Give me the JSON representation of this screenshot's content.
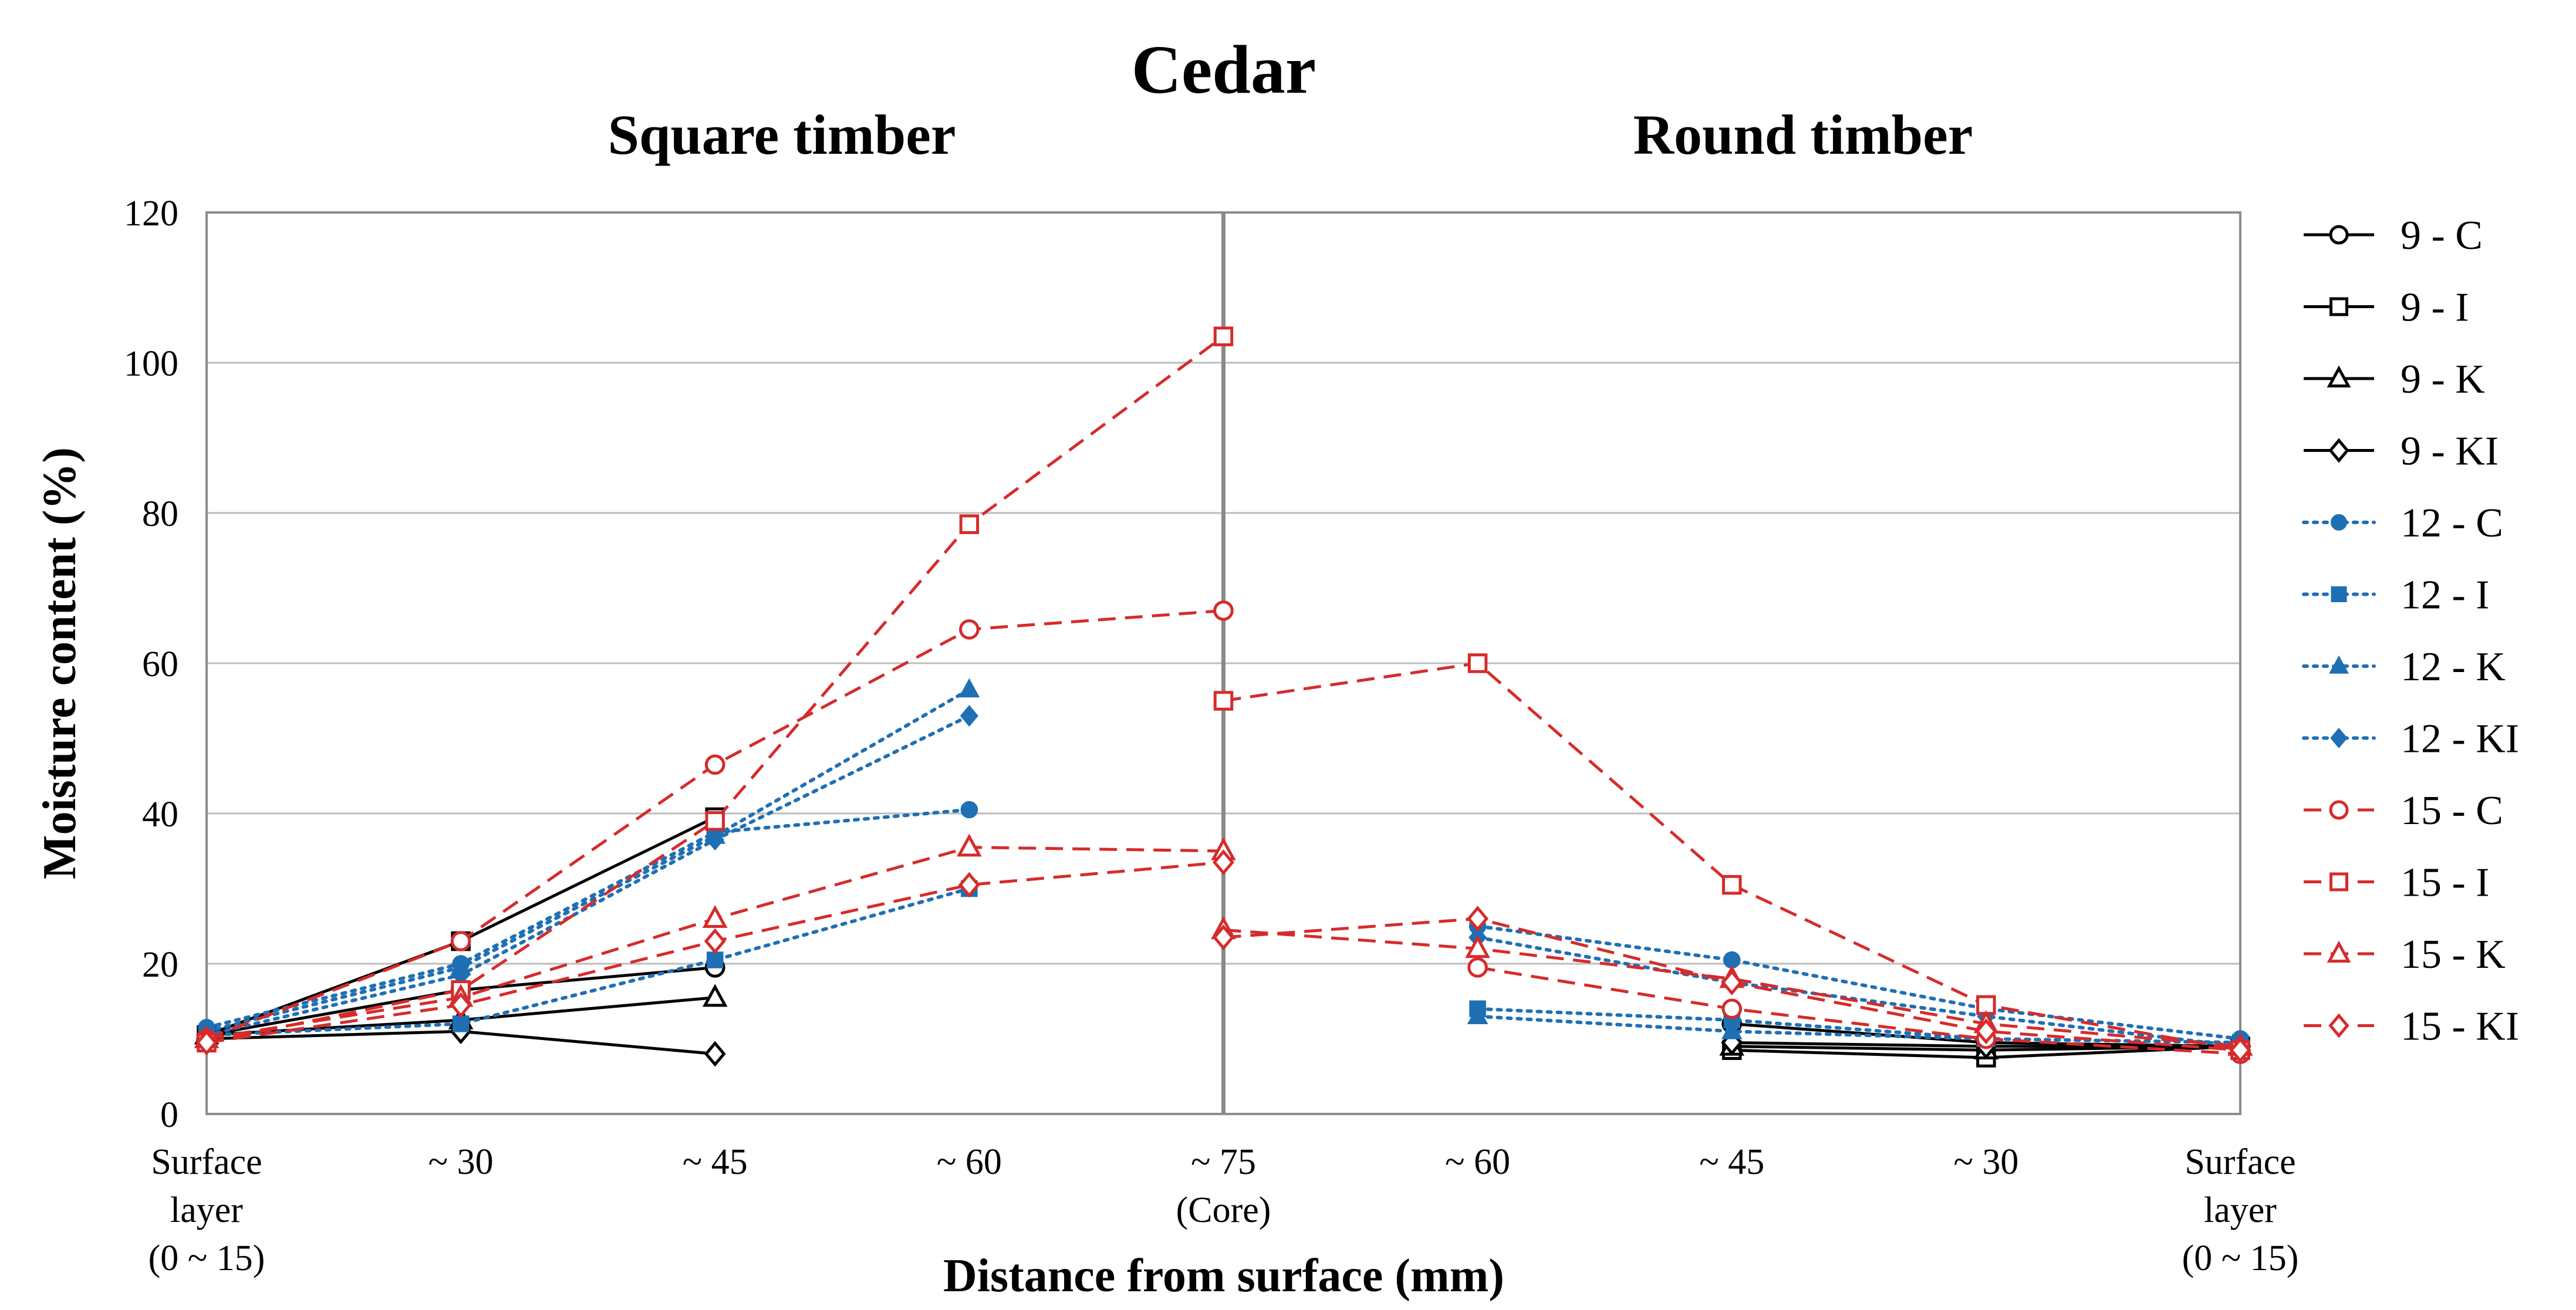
{
  "chart_data": {
    "type": "line",
    "title": "Cedar",
    "subtitles": [
      "Square timber",
      "Round timber"
    ],
    "xlabel": "Distance from surface (mm)",
    "ylabel": "Moisture content (%)",
    "ylim": [
      0,
      120
    ],
    "yticks": [
      "0",
      "20",
      "40",
      "60",
      "80",
      "100",
      "120"
    ],
    "grid": true,
    "legend_position": "right",
    "divider_at_category": 4,
    "categories": [
      [
        "Surface",
        "layer",
        "(0 ~ 15)"
      ],
      [
        "~ 30"
      ],
      [
        "~ 45"
      ],
      [
        "~ 60"
      ],
      [
        "~ 75",
        "(Core)"
      ],
      [
        "~ 60"
      ],
      [
        "~ 45"
      ],
      [
        "~ 30"
      ],
      [
        "Surface",
        "layer",
        "(0 ~ 15)"
      ]
    ],
    "series": [
      {
        "name": "9 - C",
        "color": "#000000",
        "dash": "solid",
        "marker": "circle",
        "filled": false,
        "segments": [
          {
            "x": [
              0,
              1,
              2
            ],
            "y": [
              10.5,
              16.5,
              19.5
            ]
          },
          {
            "x": [
              5,
              6,
              7,
              8
            ],
            "y": [
              null,
              12,
              9.5,
              9
            ]
          }
        ]
      },
      {
        "name": "9 - I",
        "color": "#000000",
        "dash": "solid",
        "marker": "square",
        "filled": false,
        "segments": [
          {
            "x": [
              0,
              1,
              2
            ],
            "y": [
              10.5,
              23,
              39.5
            ]
          },
          {
            "x": [
              6,
              7,
              8
            ],
            "y": [
              8.5,
              7.5,
              9
            ]
          }
        ]
      },
      {
        "name": "9 - K",
        "color": "#000000",
        "dash": "solid",
        "marker": "triangle",
        "filled": false,
        "segments": [
          {
            "x": [
              0,
              1,
              2
            ],
            "y": [
              10.5,
              12.5,
              15.5
            ]
          },
          {
            "x": [
              6,
              7,
              8
            ],
            "y": [
              9,
              8.5,
              9
            ]
          }
        ]
      },
      {
        "name": "9 - KI",
        "color": "#000000",
        "dash": "solid",
        "marker": "diamond",
        "filled": false,
        "segments": [
          {
            "x": [
              0,
              1,
              2
            ],
            "y": [
              10,
              11,
              8
            ]
          },
          {
            "x": [
              6,
              7,
              8
            ],
            "y": [
              9.5,
              9,
              9
            ]
          }
        ]
      },
      {
        "name": "12 - C",
        "color": "#1f6fb4",
        "dash": "dotted",
        "marker": "circle",
        "filled": true,
        "segments": [
          {
            "x": [
              0,
              1,
              2,
              3
            ],
            "y": [
              11.5,
              20,
              37.5,
              40.5
            ]
          },
          {
            "x": [
              5,
              6,
              7,
              8
            ],
            "y": [
              25,
              20.5,
              14,
              10
            ]
          }
        ]
      },
      {
        "name": "12 - I",
        "color": "#1f6fb4",
        "dash": "dotted",
        "marker": "square",
        "filled": true,
        "segments": [
          {
            "x": [
              0,
              1,
              2,
              3
            ],
            "y": [
              10.5,
              12,
              20.5,
              30
            ]
          },
          {
            "x": [
              5,
              6,
              7,
              8
            ],
            "y": [
              14,
              12.5,
              10,
              9.5
            ]
          }
        ]
      },
      {
        "name": "12 - K",
        "color": "#1f6fb4",
        "dash": "dotted",
        "marker": "triangle",
        "filled": true,
        "segments": [
          {
            "x": [
              0,
              1,
              2,
              3
            ],
            "y": [
              11,
              19.5,
              37,
              56.5
            ]
          },
          {
            "x": [
              5,
              6,
              7,
              8
            ],
            "y": [
              13,
              11,
              10,
              9.5
            ]
          }
        ]
      },
      {
        "name": "12 - KI",
        "color": "#1f6fb4",
        "dash": "dotted",
        "marker": "diamond",
        "filled": true,
        "segments": [
          {
            "x": [
              0,
              1,
              2,
              3
            ],
            "y": [
              10.5,
              18.5,
              36.5,
              53
            ]
          },
          {
            "x": [
              5,
              6,
              7,
              8
            ],
            "y": [
              23.5,
              17.5,
              13,
              9
            ]
          }
        ]
      },
      {
        "name": "15 - C",
        "color": "#d62b2b",
        "dash": "dashed",
        "marker": "circle",
        "filled": false,
        "segments": [
          {
            "x": [
              0,
              1,
              2,
              3,
              4
            ],
            "y": [
              10,
              23,
              46.5,
              64.5,
              67
            ]
          },
          {
            "x": [
              5,
              6,
              7,
              8
            ],
            "y": [
              19.5,
              14,
              10,
              8
            ]
          }
        ]
      },
      {
        "name": "15 - I",
        "color": "#d62b2b",
        "dash": "dashed",
        "marker": "square",
        "filled": false,
        "segments": [
          {
            "x": [
              0,
              1,
              2,
              3,
              4
            ],
            "y": [
              9.5,
              16.5,
              39,
              78.5,
              103.5
            ]
          },
          {
            "x": [
              4,
              5,
              6,
              7,
              8
            ],
            "y": [
              55,
              60,
              30.5,
              14.5,
              8.5
            ]
          }
        ]
      },
      {
        "name": "15 - K",
        "color": "#d62b2b",
        "dash": "dashed",
        "marker": "triangle",
        "filled": false,
        "segments": [
          {
            "x": [
              0,
              1,
              2,
              3,
              4
            ],
            "y": [
              10,
              15.5,
              26,
              35.5,
              35
            ]
          },
          {
            "x": [
              4,
              5,
              6,
              7,
              8
            ],
            "y": [
              24.5,
              22,
              18,
              12,
              9
            ]
          }
        ]
      },
      {
        "name": "15 - KI",
        "color": "#d62b2b",
        "dash": "dashed",
        "marker": "diamond",
        "filled": false,
        "segments": [
          {
            "x": [
              0,
              1,
              2,
              3,
              4
            ],
            "y": [
              9.5,
              14.5,
              23,
              30.5,
              33.5
            ]
          },
          {
            "x": [
              4,
              5,
              6,
              7,
              8
            ],
            "y": [
              23.5,
              26,
              17.5,
              11,
              8.5
            ]
          }
        ]
      }
    ]
  }
}
